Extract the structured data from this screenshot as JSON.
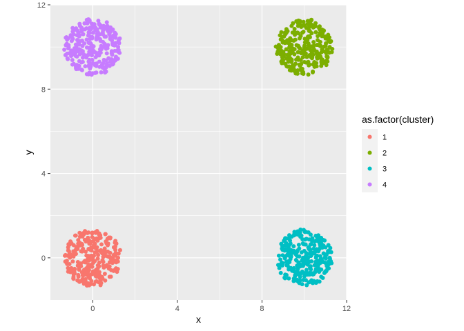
{
  "chart_data": {
    "type": "scatter",
    "title": "",
    "xlabel": "x",
    "ylabel": "y",
    "xlim": [
      -2,
      12
    ],
    "ylim": [
      -2,
      12
    ],
    "x_ticks": [
      0,
      4,
      8,
      12
    ],
    "y_ticks": [
      0,
      4,
      8,
      12
    ],
    "grid": true,
    "legend": {
      "title": "as.factor(cluster)",
      "placement": "right"
    },
    "series": [
      {
        "name": "1",
        "color": "#F8766D",
        "center": [
          0,
          0
        ],
        "radius": 1.35,
        "points": [
          [
            -1.2,
            0.1
          ],
          [
            -0.9,
            0.6
          ],
          [
            -0.6,
            1.0
          ],
          [
            -0.2,
            1.2
          ],
          [
            0.3,
            1.1
          ],
          [
            0.7,
            0.9
          ],
          [
            1.0,
            0.5
          ],
          [
            1.2,
            0.0
          ],
          [
            1.1,
            -0.5
          ],
          [
            0.8,
            -0.9
          ],
          [
            0.4,
            -1.2
          ],
          [
            -0.1,
            -1.25
          ],
          [
            -0.5,
            -1.1
          ],
          [
            -0.9,
            -0.8
          ],
          [
            -1.1,
            -0.3
          ],
          [
            -0.5,
            0.3
          ],
          [
            0.2,
            0.5
          ],
          [
            0.6,
            0.1
          ],
          [
            0.3,
            -0.4
          ],
          [
            -0.3,
            -0.5
          ],
          [
            0.0,
            0.0
          ],
          [
            -0.7,
            -0.2
          ],
          [
            0.9,
            -0.2
          ],
          [
            0.1,
            0.9
          ],
          [
            -0.2,
            -0.9
          ]
        ]
      },
      {
        "name": "2",
        "color": "#7CAE00",
        "center": [
          10,
          10
        ],
        "radius": 1.35,
        "points": [
          [
            8.8,
            10.1
          ],
          [
            9.1,
            10.6
          ],
          [
            9.4,
            11.0
          ],
          [
            9.8,
            11.2
          ],
          [
            10.3,
            11.1
          ],
          [
            10.7,
            10.9
          ],
          [
            11.0,
            10.5
          ],
          [
            11.2,
            10.0
          ],
          [
            11.1,
            9.5
          ],
          [
            10.8,
            9.1
          ],
          [
            10.4,
            8.8
          ],
          [
            9.9,
            8.75
          ],
          [
            9.5,
            8.9
          ],
          [
            9.1,
            9.2
          ],
          [
            8.9,
            9.7
          ],
          [
            9.5,
            10.3
          ],
          [
            10.2,
            10.5
          ],
          [
            10.6,
            10.1
          ],
          [
            10.3,
            9.6
          ],
          [
            9.7,
            9.5
          ],
          [
            10.0,
            10.0
          ],
          [
            9.3,
            9.8
          ],
          [
            10.9,
            9.8
          ],
          [
            10.1,
            10.9
          ],
          [
            9.8,
            9.1
          ]
        ]
      },
      {
        "name": "3",
        "color": "#00BFC4",
        "center": [
          10,
          0
        ],
        "radius": 1.35,
        "points": [
          [
            8.8,
            0.1
          ],
          [
            9.1,
            0.6
          ],
          [
            9.4,
            1.0
          ],
          [
            9.8,
            1.2
          ],
          [
            10.3,
            1.1
          ],
          [
            10.7,
            0.9
          ],
          [
            11.0,
            0.5
          ],
          [
            11.2,
            0.0
          ],
          [
            11.1,
            -0.5
          ],
          [
            10.8,
            -0.9
          ],
          [
            10.4,
            -1.2
          ],
          [
            9.9,
            -1.25
          ],
          [
            9.5,
            -1.1
          ],
          [
            9.1,
            -0.8
          ],
          [
            8.9,
            -0.3
          ],
          [
            9.5,
            0.3
          ],
          [
            10.2,
            0.5
          ],
          [
            10.6,
            0.1
          ],
          [
            10.3,
            -0.4
          ],
          [
            9.7,
            -0.5
          ],
          [
            10.0,
            0.0
          ],
          [
            9.3,
            -0.2
          ],
          [
            10.9,
            -0.2
          ],
          [
            10.1,
            0.9
          ],
          [
            9.8,
            -0.9
          ]
        ]
      },
      {
        "name": "4",
        "color": "#C77CFF",
        "center": [
          0,
          10
        ],
        "radius": 1.35,
        "points": [
          [
            -1.2,
            10.1
          ],
          [
            -0.9,
            10.6
          ],
          [
            -0.6,
            11.0
          ],
          [
            -0.2,
            11.2
          ],
          [
            0.3,
            11.1
          ],
          [
            0.7,
            10.9
          ],
          [
            1.0,
            10.5
          ],
          [
            1.2,
            10.0
          ],
          [
            1.1,
            9.5
          ],
          [
            0.8,
            9.1
          ],
          [
            0.4,
            8.8
          ],
          [
            -0.1,
            8.75
          ],
          [
            -0.5,
            8.9
          ],
          [
            -0.9,
            9.2
          ],
          [
            -1.1,
            9.7
          ],
          [
            -0.5,
            10.3
          ],
          [
            0.2,
            10.5
          ],
          [
            0.6,
            10.1
          ],
          [
            0.3,
            9.6
          ],
          [
            -0.3,
            9.5
          ],
          [
            0.0,
            10.0
          ],
          [
            -0.7,
            9.8
          ],
          [
            0.9,
            9.8
          ],
          [
            0.1,
            10.9
          ],
          [
            -0.2,
            9.1
          ]
        ]
      }
    ]
  }
}
